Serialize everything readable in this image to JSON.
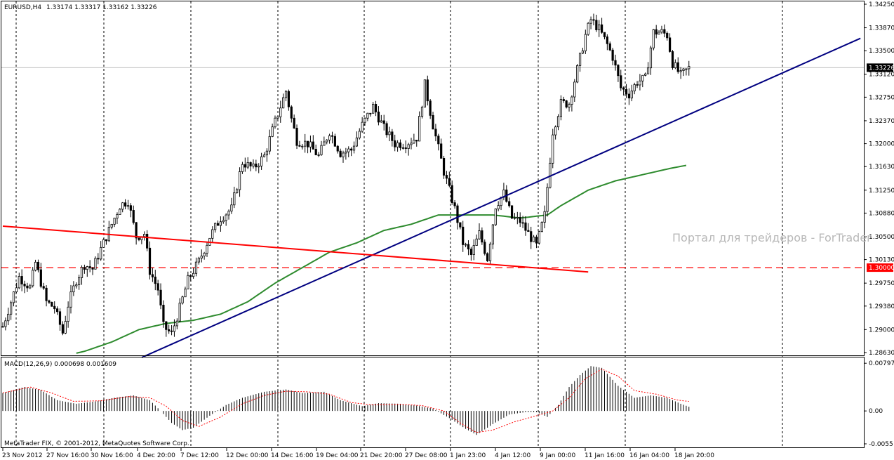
{
  "header": {
    "symbol": "EURUSD,H4",
    "ohlc": "1.33174 1.33317 1.33162 1.33226"
  },
  "watermark": "Портал для трейдеров - ForTrader",
  "copyright": "MetaTrader FIX, © 2001-2012, MetaQuotes Software Corp.",
  "colors": {
    "background": "#ffffff",
    "candle": "#000000",
    "ma_line": "#2e8b2e",
    "upper_trendline": "#000080",
    "lower_trendline": "#ff0000",
    "support_level": "#ff0000",
    "macd_signal": "#ff0000",
    "grid": "#000000"
  },
  "chart_data": {
    "type": "candlestick",
    "price_axis": {
      "ticks": [
        "1.34250",
        "1.33870",
        "1.33500",
        "1.33120",
        "1.32750",
        "1.32370",
        "1.32000",
        "1.31630",
        "1.31250",
        "1.30880",
        "1.30500",
        "1.30130",
        "1.29750",
        "1.29380",
        "1.29000",
        "1.28630"
      ],
      "ylim": [
        1.2863,
        1.3425
      ],
      "current_price": "1.33226",
      "level_label": "1.30000"
    },
    "time_axis": {
      "labels": [
        "23 Nov 2012",
        "27 Nov 16:00",
        "30 Nov 16:00",
        "4 Dec 20:00",
        "7 Dec 12:00",
        "12 Dec 00:00",
        "14 Dec 16:00",
        "19 Dec 04:00",
        "21 Dec 20:00",
        "27 Dec 08:00",
        "1 Jan 23:00",
        "4 Jan 12:00",
        "9 Jan 00:00",
        "11 Jan 16:00",
        "16 Jan 04:00",
        "18 Jan 20:00"
      ],
      "bar_count": 198
    },
    "anchors": [
      [
        0,
        1.2905
      ],
      [
        3,
        1.2945
      ],
      [
        6,
        1.2985
      ],
      [
        10,
        1.2968
      ],
      [
        12,
        1.3008
      ],
      [
        16,
        1.2945
      ],
      [
        19,
        1.2935
      ],
      [
        22,
        1.2895
      ],
      [
        24,
        1.294
      ],
      [
        27,
        1.298
      ],
      [
        30,
        1.3005
      ],
      [
        33,
        1.2998
      ],
      [
        36,
        1.303
      ],
      [
        39,
        1.306
      ],
      [
        43,
        1.31
      ],
      [
        46,
        1.3108
      ],
      [
        49,
        1.305
      ],
      [
        52,
        1.3055
      ],
      [
        54,
        1.2995
      ],
      [
        57,
        1.2965
      ],
      [
        59,
        1.2905
      ],
      [
        62,
        1.2893
      ],
      [
        65,
        1.2935
      ],
      [
        68,
        1.298
      ],
      [
        72,
        1.301
      ],
      [
        76,
        1.305
      ],
      [
        80,
        1.308
      ],
      [
        84,
        1.3095
      ],
      [
        88,
        1.317
      ],
      [
        92,
        1.316
      ],
      [
        96,
        1.318
      ],
      [
        100,
        1.3235
      ],
      [
        104,
        1.3285
      ],
      [
        106,
        1.324
      ],
      [
        108,
        1.3205
      ],
      [
        112,
        1.32
      ],
      [
        116,
        1.318
      ],
      [
        120,
        1.322
      ],
      [
        124,
        1.3185
      ],
      [
        128,
        1.319
      ],
      [
        132,
        1.323
      ],
      [
        136,
        1.326
      ],
      [
        140,
        1.3225
      ],
      [
        144,
        1.32
      ],
      [
        148,
        1.32
      ],
      [
        152,
        1.321
      ],
      [
        155,
        1.3295
      ],
      [
        158,
        1.323
      ],
      [
        162,
        1.3155
      ],
      [
        166,
        1.3095
      ],
      [
        169,
        1.304
      ],
      [
        172,
        1.302
      ],
      [
        175,
        1.3055
      ],
      [
        178,
        1.3015
      ],
      [
        181,
        1.31
      ],
      [
        184,
        1.312
      ],
      [
        187,
        1.308
      ],
      [
        190,
        1.3075
      ],
      [
        193,
        1.3055
      ],
      [
        196,
        1.3035
      ],
      [
        199,
        1.3085
      ],
      [
        202,
        1.322
      ],
      [
        205,
        1.3265
      ],
      [
        208,
        1.3265
      ],
      [
        211,
        1.332
      ],
      [
        214,
        1.3375
      ],
      [
        216,
        1.34
      ],
      [
        219,
        1.3385
      ],
      [
        222,
        1.336
      ],
      [
        224,
        1.334
      ],
      [
        227,
        1.329
      ],
      [
        230,
        1.328
      ],
      [
        233,
        1.33
      ],
      [
        236,
        1.3305
      ],
      [
        239,
        1.338
      ],
      [
        242,
        1.338
      ],
      [
        244,
        1.3375
      ],
      [
        246,
        1.333
      ],
      [
        249,
        1.331
      ],
      [
        252,
        1.3322
      ]
    ],
    "ma_anchors": [
      [
        20,
        1.2855
      ],
      [
        30,
        1.2865
      ],
      [
        40,
        1.288
      ],
      [
        50,
        1.29
      ],
      [
        60,
        1.291
      ],
      [
        70,
        1.2915
      ],
      [
        80,
        1.2925
      ],
      [
        90,
        1.2945
      ],
      [
        100,
        1.2975
      ],
      [
        110,
        1.3
      ],
      [
        120,
        1.3025
      ],
      [
        130,
        1.304
      ],
      [
        140,
        1.306
      ],
      [
        150,
        1.307
      ],
      [
        160,
        1.3085
      ],
      [
        170,
        1.3085
      ],
      [
        180,
        1.3085
      ],
      [
        190,
        1.308
      ],
      [
        200,
        1.3085
      ],
      [
        205,
        1.31
      ],
      [
        215,
        1.3125
      ],
      [
        225,
        1.314
      ],
      [
        235,
        1.315
      ],
      [
        245,
        1.316
      ],
      [
        251,
        1.3165
      ]
    ],
    "upper_trendline": [
      [
        51,
        1.2855
      ],
      [
        315,
        1.337
      ]
    ],
    "lower_trendline": [
      [
        0,
        1.3067
      ],
      [
        215,
        1.2993
      ]
    ],
    "support_level": 1.3,
    "macd": {
      "label": "MACD(12,26,9) 0.000698 0.001609",
      "ticks": [
        "0.007975",
        "0.00",
        "-0.0055"
      ],
      "ylim": [
        -0.0055,
        0.008
      ],
      "anchors": [
        [
          0,
          0.003
        ],
        [
          8,
          0.004
        ],
        [
          14,
          0.0035
        ],
        [
          20,
          0.0018
        ],
        [
          27,
          0.0012
        ],
        [
          34,
          0.0016
        ],
        [
          41,
          0.0022
        ],
        [
          48,
          0.0026
        ],
        [
          54,
          0.0018
        ],
        [
          58,
          0.0
        ],
        [
          62,
          -0.002
        ],
        [
          66,
          -0.0032
        ],
        [
          70,
          -0.0028
        ],
        [
          76,
          -0.0008
        ],
        [
          82,
          0.001
        ],
        [
          88,
          0.0022
        ],
        [
          96,
          0.0032
        ],
        [
          104,
          0.0036
        ],
        [
          110,
          0.003
        ],
        [
          118,
          0.0032
        ],
        [
          124,
          0.0018
        ],
        [
          132,
          0.0008
        ],
        [
          138,
          0.0013
        ],
        [
          146,
          0.0012
        ],
        [
          152,
          0.0009
        ],
        [
          158,
          0.0004
        ],
        [
          164,
          -0.0012
        ],
        [
          170,
          -0.003
        ],
        [
          174,
          -0.004
        ],
        [
          180,
          -0.0022
        ],
        [
          186,
          -0.0006
        ],
        [
          192,
          -0.0002
        ],
        [
          196,
          -0.0002
        ],
        [
          200,
          -0.001
        ],
        [
          204,
          0.001
        ],
        [
          208,
          0.004
        ],
        [
          212,
          0.006
        ],
        [
          216,
          0.0075
        ],
        [
          220,
          0.0072
        ],
        [
          226,
          0.0042
        ],
        [
          232,
          0.0022
        ],
        [
          238,
          0.0026
        ],
        [
          244,
          0.0022
        ],
        [
          249,
          0.0012
        ],
        [
          252,
          0.0007
        ]
      ],
      "signal_anchors": [
        [
          0,
          0.003
        ],
        [
          10,
          0.004
        ],
        [
          18,
          0.003
        ],
        [
          26,
          0.0016
        ],
        [
          36,
          0.0017
        ],
        [
          46,
          0.0024
        ],
        [
          54,
          0.0022
        ],
        [
          60,
          0.0008
        ],
        [
          66,
          -0.0016
        ],
        [
          72,
          -0.0026
        ],
        [
          80,
          -0.001
        ],
        [
          88,
          0.0012
        ],
        [
          96,
          0.0026
        ],
        [
          104,
          0.0033
        ],
        [
          112,
          0.0032
        ],
        [
          120,
          0.0028
        ],
        [
          128,
          0.0014
        ],
        [
          136,
          0.001
        ],
        [
          146,
          0.0011
        ],
        [
          154,
          0.0009
        ],
        [
          162,
          0.0
        ],
        [
          168,
          -0.002
        ],
        [
          174,
          -0.0036
        ],
        [
          180,
          -0.0032
        ],
        [
          188,
          -0.0018
        ],
        [
          196,
          -0.0008
        ],
        [
          202,
          0.0
        ],
        [
          208,
          0.0022
        ],
        [
          214,
          0.0054
        ],
        [
          220,
          0.007
        ],
        [
          226,
          0.0058
        ],
        [
          232,
          0.0034
        ],
        [
          240,
          0.0028
        ],
        [
          248,
          0.0018
        ],
        [
          252,
          0.0016
        ]
      ]
    }
  }
}
